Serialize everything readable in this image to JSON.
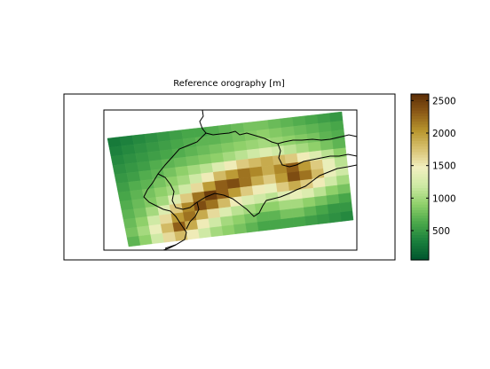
{
  "map": {
    "title": "Reference orography [m]",
    "field": "orography",
    "units": "m",
    "region": "Switzerland and surroundings (Alps)",
    "grid": {
      "rows": 12,
      "cols": 19,
      "values": [
        [
          300,
          350,
          400,
          450,
          500,
          550,
          600,
          600,
          650,
          700,
          750,
          800,
          800,
          750,
          700,
          650,
          600,
          550,
          500
        ],
        [
          350,
          400,
          450,
          500,
          550,
          600,
          650,
          700,
          700,
          750,
          800,
          850,
          900,
          850,
          800,
          750,
          700,
          650,
          600
        ],
        [
          400,
          450,
          500,
          550,
          600,
          650,
          700,
          750,
          800,
          850,
          900,
          950,
          1000,
          950,
          900,
          850,
          800,
          700,
          650
        ],
        [
          450,
          500,
          550,
          650,
          700,
          750,
          800,
          850,
          900,
          1000,
          1100,
          1200,
          1300,
          1200,
          1100,
          1000,
          900,
          800,
          700
        ],
        [
          500,
          550,
          650,
          700,
          800,
          900,
          1000,
          1100,
          1300,
          1500,
          1700,
          1800,
          1900,
          1800,
          1700,
          1500,
          1300,
          1100,
          900
        ],
        [
          550,
          650,
          700,
          800,
          900,
          1000,
          1200,
          1500,
          1800,
          2000,
          2200,
          2100,
          1900,
          2100,
          2300,
          2000,
          1700,
          1400,
          1100
        ],
        [
          600,
          700,
          800,
          900,
          1000,
          1200,
          1600,
          2000,
          2300,
          2400,
          2200,
          1900,
          1700,
          2000,
          2400,
          2200,
          1800,
          1400,
          1200
        ],
        [
          650,
          750,
          850,
          1000,
          1300,
          1700,
          2200,
          2500,
          2300,
          2000,
          1700,
          1500,
          1400,
          1700,
          1900,
          1700,
          1500,
          1200,
          1000
        ],
        [
          700,
          800,
          1000,
          1300,
          1700,
          2100,
          2400,
          2200,
          1800,
          1500,
          1300,
          1200,
          1100,
          1300,
          1400,
          1300,
          1100,
          900,
          800
        ],
        [
          750,
          900,
          1200,
          1600,
          2000,
          2200,
          1900,
          1600,
          1300,
          1100,
          1000,
          900,
          900,
          1000,
          1000,
          900,
          800,
          700,
          600
        ],
        [
          800,
          1000,
          1400,
          1800,
          2300,
          1900,
          1500,
          1200,
          1000,
          900,
          800,
          700,
          700,
          800,
          800,
          700,
          600,
          500,
          500
        ],
        [
          700,
          900,
          1200,
          1600,
          1800,
          1500,
          1200,
          1000,
          900,
          800,
          700,
          600,
          600,
          600,
          600,
          550,
          500,
          450,
          400
        ]
      ]
    },
    "colorbar": {
      "ticks": [
        500,
        1000,
        1500,
        2000,
        2500
      ],
      "tick_labels": [
        "500",
        "1000",
        "1500",
        "2000",
        "2500"
      ],
      "range": [
        50,
        2600
      ],
      "colormap": [
        "#00552e",
        "#1a7f3c",
        "#4aa84a",
        "#8fd06a",
        "#cde9a3",
        "#f2f0c0",
        "#d8c271",
        "#b8962e",
        "#8c5a17",
        "#5b2d06"
      ]
    },
    "colors": {
      "border_line": "#000000",
      "frame": "#000000"
    }
  }
}
